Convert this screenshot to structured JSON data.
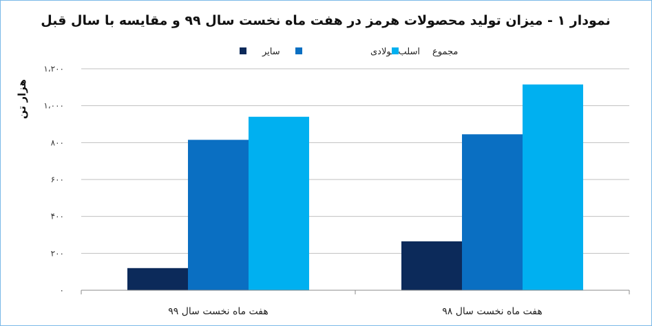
{
  "chart_data": {
    "type": "bar",
    "title": "نمودار ۱ - میزان تولید محصولات هرمز در هفت ماه نخست سال ۹۹ و مقایسه با سال قبل",
    "ylabel": "هزار تن",
    "xlabel": "",
    "categories": [
      "هفت ماه نخست سال ۹۹",
      "هفت ماه نخست سال ۹۸"
    ],
    "series": [
      {
        "name": "سایر",
        "color": "#0c2a5a",
        "values": [
          120,
          265
        ]
      },
      {
        "name": "اسلب فولادی",
        "color": "#0a6fc2",
        "values": [
          815,
          845
        ]
      },
      {
        "name": "مجموع",
        "color": "#00b0f0",
        "values": [
          940,
          1115
        ]
      }
    ],
    "ylim": [
      0,
      1200
    ],
    "yticks": [
      0,
      200,
      400,
      600,
      800,
      1000,
      1200
    ],
    "ytick_labels": [
      "۰",
      "۲۰۰",
      "۴۰۰",
      "۶۰۰",
      "۸۰۰",
      "۱،۰۰۰",
      "۱،۲۰۰"
    ],
    "grid": true,
    "legend_position": "top"
  }
}
